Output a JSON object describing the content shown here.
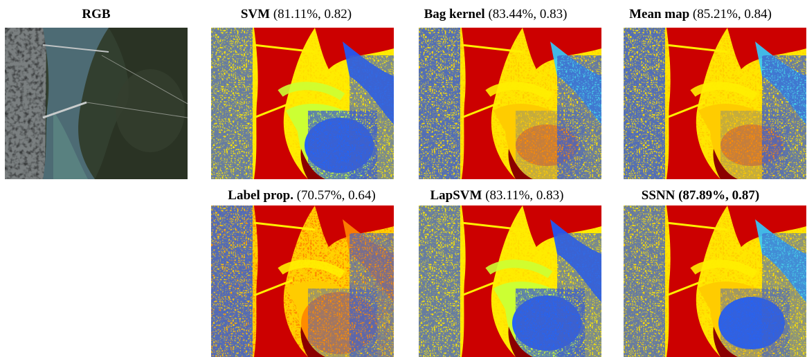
{
  "panels": {
    "rgb": {
      "name": "RGB"
    },
    "svm": {
      "name": "SVM",
      "stats": "(81.11%, 0.82)"
    },
    "bag": {
      "name": "Bag kernel",
      "stats": "(83.44%, 0.83)"
    },
    "meanmap": {
      "name": "Mean map",
      "stats": "(85.21%, 0.84)"
    },
    "labelprop": {
      "name": "Label prop.",
      "stats": "(70.57%, 0.64)"
    },
    "lapsvm": {
      "name": "LapSVM",
      "stats": "(83.11%, 0.83)"
    },
    "ssnn": {
      "name": "SSNN",
      "stats_bold": "(87.89%, 0.87)"
    }
  },
  "colors": {
    "water_red": "#cc0000",
    "dark_red": "#8b0000",
    "yellow": "#ffee00",
    "gold": "#ffcc00",
    "orange": "#ff8800",
    "light_green": "#ccff33",
    "blue": "#1a5cff",
    "navy": "#0b1a8a",
    "cyan": "#33ccff",
    "satellite_water": "#4a6670",
    "satellite_land": "#2e3a26"
  }
}
